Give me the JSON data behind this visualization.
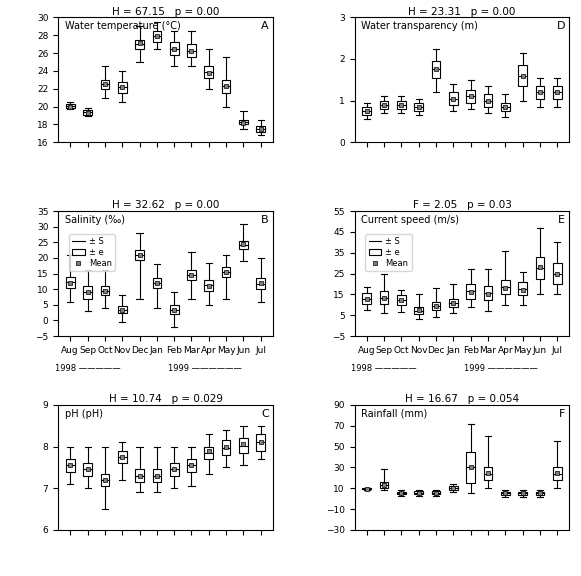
{
  "months": [
    "Aug",
    "Sep",
    "Oct",
    "Nov",
    "Dec",
    "Jan",
    "Feb",
    "Mar",
    "Apr",
    "May",
    "Jun",
    "Jul"
  ],
  "year_label_1998": "1998",
  "year_label_1999": "1999",
  "A": {
    "title": "H = 67.15   p = 0.00",
    "label": "Water temperature (°C)",
    "panel": "A",
    "ylim": [
      16,
      30
    ],
    "yticks": [
      16,
      18,
      20,
      22,
      24,
      26,
      28,
      30
    ],
    "means": [
      20.0,
      19.3,
      22.5,
      22.2,
      27.1,
      27.9,
      26.5,
      26.2,
      23.8,
      22.3,
      18.2,
      17.5
    ],
    "q1": [
      19.8,
      19.1,
      22.0,
      21.5,
      26.5,
      27.2,
      25.8,
      25.5,
      23.2,
      21.5,
      18.0,
      17.2
    ],
    "q3": [
      20.3,
      19.6,
      23.0,
      22.8,
      27.5,
      28.5,
      27.2,
      27.0,
      24.5,
      23.0,
      18.5,
      17.8
    ],
    "whislo": [
      19.7,
      18.9,
      21.0,
      20.5,
      25.0,
      26.5,
      24.5,
      24.5,
      22.0,
      20.0,
      17.5,
      16.8
    ],
    "whishi": [
      20.5,
      19.8,
      24.5,
      24.0,
      29.0,
      29.5,
      28.5,
      28.5,
      26.5,
      25.5,
      19.5,
      18.5
    ]
  },
  "D": {
    "title": "H = 23.31   p = 0.00",
    "label": "Water transparency (m)",
    "panel": "D",
    "ylim": [
      0,
      3
    ],
    "yticks": [
      0,
      1,
      2,
      3
    ],
    "means": [
      0.75,
      0.9,
      0.9,
      0.85,
      1.75,
      1.05,
      1.1,
      1.0,
      0.85,
      1.6,
      1.2,
      1.2
    ],
    "q1": [
      0.65,
      0.8,
      0.8,
      0.75,
      1.55,
      0.9,
      0.95,
      0.85,
      0.75,
      1.35,
      1.05,
      1.05
    ],
    "q3": [
      0.85,
      1.0,
      1.0,
      0.95,
      1.95,
      1.2,
      1.25,
      1.15,
      0.95,
      1.85,
      1.35,
      1.35
    ],
    "whislo": [
      0.55,
      0.7,
      0.7,
      0.65,
      1.2,
      0.75,
      0.8,
      0.7,
      0.6,
      1.0,
      0.85,
      0.85
    ],
    "whishi": [
      0.95,
      1.1,
      1.1,
      1.05,
      2.25,
      1.4,
      1.5,
      1.35,
      1.15,
      2.15,
      1.55,
      1.55
    ]
  },
  "B": {
    "title": "H = 32.62   p = 0.00",
    "label": "Salinity (‰)",
    "panel": "B",
    "ylim": [
      -5,
      35
    ],
    "yticks": [
      -5,
      0,
      5,
      10,
      15,
      20,
      25,
      30,
      35
    ],
    "means": [
      12.0,
      9.0,
      9.5,
      3.5,
      21.0,
      12.0,
      3.5,
      14.5,
      11.0,
      15.5,
      24.5,
      12.0
    ],
    "q1": [
      10.5,
      7.0,
      8.0,
      2.5,
      19.5,
      10.5,
      2.0,
      13.0,
      9.5,
      14.0,
      23.0,
      10.0
    ],
    "q3": [
      14.0,
      11.0,
      11.0,
      4.5,
      22.5,
      13.5,
      5.0,
      16.0,
      13.0,
      17.0,
      25.5,
      13.5
    ],
    "whislo": [
      6.0,
      3.0,
      4.0,
      -0.5,
      7.0,
      4.0,
      -2.0,
      7.0,
      5.0,
      7.0,
      19.0,
      6.0
    ],
    "whishi": [
      21.0,
      16.0,
      16.0,
      8.0,
      28.0,
      18.0,
      9.0,
      22.0,
      18.5,
      21.0,
      31.0,
      20.0
    ]
  },
  "E": {
    "title": "F = 2.05   p = 0.03",
    "label": "Current speed (m/s)",
    "panel": "E",
    "ylim": [
      -5,
      55
    ],
    "yticks": [
      -5,
      5,
      15,
      25,
      35,
      45,
      55
    ],
    "means": [
      13.0,
      13.5,
      12.5,
      7.5,
      9.5,
      11.0,
      16.0,
      15.0,
      18.0,
      17.0,
      28.0,
      25.0
    ],
    "q1": [
      10.5,
      10.5,
      10.0,
      5.5,
      7.5,
      9.0,
      13.0,
      12.5,
      15.0,
      14.5,
      22.5,
      20.0
    ],
    "q3": [
      15.5,
      16.5,
      14.5,
      9.0,
      11.5,
      13.0,
      20.0,
      19.0,
      22.0,
      21.0,
      33.0,
      30.0
    ],
    "whislo": [
      7.5,
      6.0,
      6.5,
      3.0,
      4.0,
      6.0,
      9.0,
      7.0,
      10.0,
      10.0,
      15.0,
      15.0
    ],
    "whishi": [
      18.5,
      25.0,
      17.0,
      15.0,
      18.0,
      20.0,
      27.0,
      27.0,
      36.0,
      26.0,
      47.0,
      40.0
    ]
  },
  "C": {
    "title": "H = 10.74   p = 0.029",
    "label": "pH (pH)",
    "panel": "C",
    "ylim": [
      6,
      9
    ],
    "yticks": [
      6,
      7,
      8,
      9
    ],
    "means": [
      7.55,
      7.45,
      7.2,
      7.75,
      7.3,
      7.3,
      7.45,
      7.55,
      7.9,
      8.0,
      8.05,
      8.1
    ],
    "q1": [
      7.4,
      7.3,
      7.05,
      7.6,
      7.15,
      7.15,
      7.3,
      7.4,
      7.7,
      7.8,
      7.85,
      7.9
    ],
    "q3": [
      7.7,
      7.6,
      7.35,
      7.9,
      7.45,
      7.45,
      7.6,
      7.7,
      8.0,
      8.15,
      8.2,
      8.3
    ],
    "whislo": [
      7.1,
      7.0,
      6.5,
      7.2,
      6.9,
      6.9,
      7.0,
      7.05,
      7.35,
      7.5,
      7.55,
      7.7
    ],
    "whishi": [
      8.0,
      8.0,
      8.0,
      8.1,
      8.0,
      8.0,
      8.0,
      8.0,
      8.3,
      8.4,
      8.5,
      8.5
    ]
  },
  "F": {
    "title": "H = 16.67   p = 0.054",
    "label": "Rainfall (mm)",
    "panel": "F",
    "ylim": [
      -30,
      90
    ],
    "yticks": [
      -30,
      -10,
      10,
      30,
      50,
      70,
      90
    ],
    "means": [
      9.5,
      13.0,
      5.0,
      5.5,
      5.5,
      10.0,
      30.0,
      25.0,
      5.0,
      5.0,
      5.0,
      25.0
    ],
    "q1": [
      9.0,
      10.0,
      4.0,
      4.0,
      4.0,
      8.0,
      15.0,
      18.0,
      3.5,
      3.5,
      3.5,
      18.0
    ],
    "q3": [
      10.0,
      16.0,
      6.0,
      7.0,
      7.0,
      12.0,
      45.0,
      30.0,
      6.5,
      6.5,
      6.5,
      30.0
    ],
    "whislo": [
      8.5,
      8.0,
      2.5,
      2.5,
      2.5,
      6.0,
      5.0,
      10.0,
      2.0,
      2.0,
      2.0,
      10.0
    ],
    "whishi": [
      10.5,
      28.0,
      8.0,
      8.0,
      8.0,
      14.0,
      72.0,
      60.0,
      8.0,
      8.0,
      8.0,
      55.0
    ]
  },
  "box_color": "white",
  "box_edge_color": "black",
  "mean_marker": "s",
  "mean_marker_size": 3,
  "mean_marker_color": "gray",
  "whisker_color": "black",
  "cap_color": "black",
  "median_color": "black",
  "legend_labels": [
    "± S",
    "± e",
    "Mean"
  ],
  "xlabel_months": [
    "Aug",
    "Sep",
    "Oct",
    "Nov",
    "Dec",
    "Jan",
    "Feb",
    "Mar",
    "Apr",
    "May",
    "Jun",
    "Jul"
  ]
}
